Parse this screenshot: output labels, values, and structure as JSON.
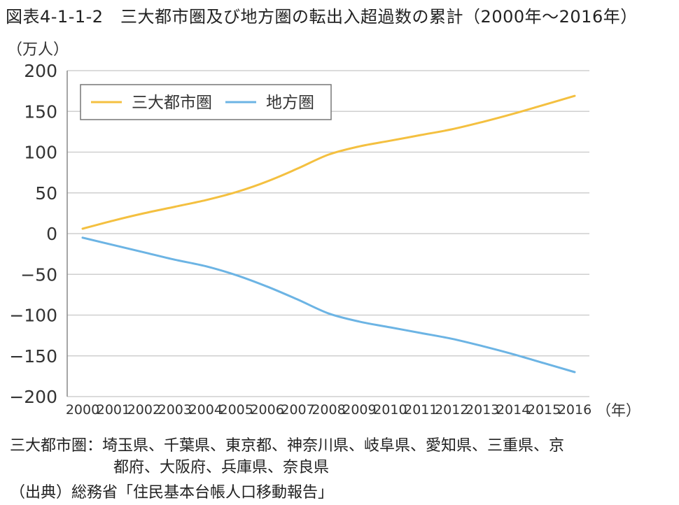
{
  "title": "図表4-1-1-2　三大都市圏及び地方圏の転出入超過数の累計（2000年～2016年）",
  "chart_data": {
    "type": "line",
    "y_unit_label": "（万人）",
    "x_unit_label": "（年）",
    "x": [
      "2000",
      "2001",
      "2002",
      "2003",
      "2004",
      "2005",
      "2006",
      "2007",
      "2008",
      "2009",
      "2010",
      "2011",
      "2012",
      "2013",
      "2014",
      "2015",
      "2016"
    ],
    "yticks": [
      200,
      150,
      100,
      50,
      0,
      -50,
      -100,
      -150,
      -200
    ],
    "ytick_labels": [
      "200",
      "150",
      "100",
      "50",
      "0",
      "−50",
      "−100",
      "−150",
      "−200"
    ],
    "ylim": [
      -200,
      200
    ],
    "grid": true,
    "legend_position": "top-left",
    "series": [
      {
        "name": "三大都市圏",
        "color": "#f4c040",
        "values": [
          6,
          16,
          25,
          33,
          41,
          51,
          64,
          80,
          97,
          107,
          114,
          121,
          128,
          137,
          147,
          158,
          169
        ]
      },
      {
        "name": "地方圏",
        "color": "#6cb4e4",
        "values": [
          -5,
          -14,
          -23,
          -32,
          -40,
          -51,
          -65,
          -81,
          -98,
          -108,
          -115,
          -122,
          -129,
          -138,
          -148,
          -159,
          -170
        ]
      }
    ]
  },
  "notes": {
    "region_line1": "三大都市圏：埼玉県、千葉県、東京都、神奈川県、岐阜県、愛知県、三重県、京",
    "region_line2": "都府、大阪府、兵庫県、奈良県",
    "source": "（出典）総務省「住民基本台帳人口移動報告」"
  }
}
